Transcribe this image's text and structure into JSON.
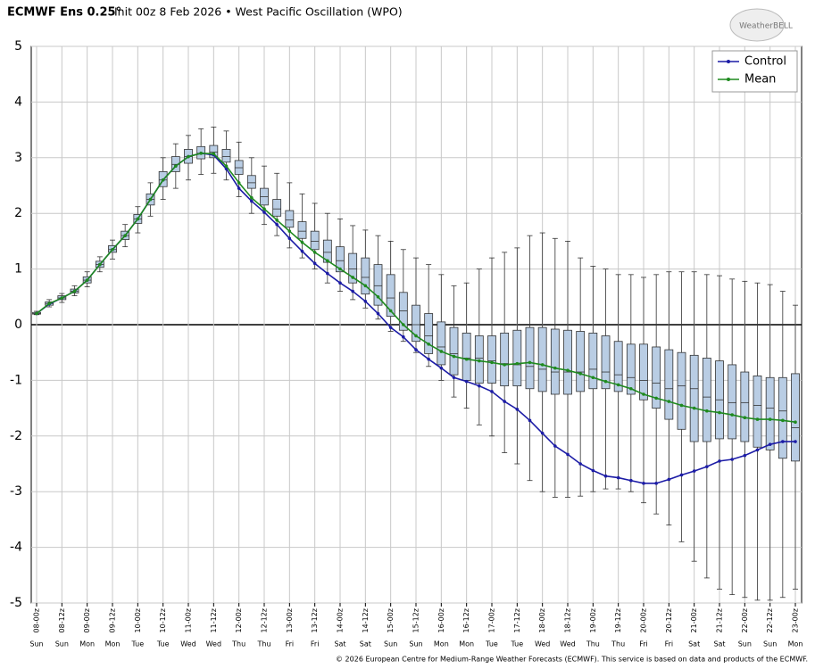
{
  "chart_data": {
    "type": "boxplot",
    "title_main": "ECMWF Ens 0.25°",
    "title_rest": "Init 00z 8 Feb 2026 • West Pacific Oscillation (WPO)",
    "logo": "WeatherBELL",
    "footer": "© 2026 European Centre for Medium-Range Weather Forecasts (ECMWF). This service is based on data and products of the ECMWF.",
    "categories": [
      "08-00z",
      null,
      "08-12z",
      null,
      "09-00z",
      null,
      "09-12z",
      null,
      "10-00z",
      null,
      "10-12z",
      null,
      "11-00z",
      null,
      "11-12z",
      null,
      "12-00z",
      null,
      "12-12z",
      null,
      "13-00z",
      null,
      "13-12z",
      null,
      "14-00z",
      null,
      "14-12z",
      null,
      "15-00z",
      null,
      "15-12z",
      null,
      "16-00z",
      null,
      "16-12z",
      null,
      "17-00z",
      null,
      "17-12z",
      null,
      "18-00z",
      null,
      "18-12z",
      null,
      "19-00z",
      null,
      "19-12z",
      null,
      "20-00z",
      null,
      "20-12z",
      null,
      "21-00z",
      null,
      "21-12z",
      null,
      "22-00z",
      null,
      "22-12z",
      null,
      "23-00z"
    ],
    "weekdays": [
      "Sun",
      null,
      "Sun",
      null,
      "Mon",
      null,
      "Mon",
      null,
      "Tue",
      null,
      "Tue",
      null,
      "Wed",
      null,
      "Wed",
      null,
      "Thu",
      null,
      "Thu",
      null,
      "Fri",
      null,
      "Fri",
      null,
      "Sat",
      null,
      "Sat",
      null,
      "Sun",
      null,
      "Sun",
      null,
      "Mon",
      null,
      "Mon",
      null,
      "Tue",
      null,
      "Tue",
      null,
      "Wed",
      null,
      "Wed",
      null,
      "Thu",
      null,
      "Thu",
      null,
      "Fri",
      null,
      "Fri",
      null,
      "Sat",
      null,
      "Sat",
      null,
      "Sun",
      null,
      "Sun",
      null,
      "Mon"
    ],
    "boxes": {
      "color": "#b9cde4",
      "min": [
        0.18,
        0.32,
        0.4,
        0.52,
        0.68,
        0.95,
        1.18,
        1.4,
        1.65,
        1.95,
        2.25,
        2.45,
        2.6,
        2.7,
        2.72,
        2.6,
        2.3,
        2.0,
        1.8,
        1.6,
        1.38,
        1.2,
        1.0,
        0.75,
        0.6,
        0.45,
        0.3,
        0.1,
        -0.12,
        -0.3,
        -0.5,
        -0.75,
        -1.0,
        -1.3,
        -1.5,
        -1.8,
        -2.0,
        -2.3,
        -2.5,
        -2.8,
        -3.0,
        -3.1,
        -3.1,
        -3.08,
        -3.0,
        -2.95,
        -2.95,
        -3.0,
        -3.2,
        -3.4,
        -3.6,
        -3.9,
        -4.25,
        -4.55,
        -4.75,
        -4.85,
        -4.9,
        -4.95,
        -4.95,
        -4.9,
        -4.75
      ],
      "q1": [
        0.19,
        0.35,
        0.45,
        0.57,
        0.75,
        1.03,
        1.3,
        1.53,
        1.82,
        2.15,
        2.48,
        2.75,
        2.9,
        2.98,
        3.0,
        2.92,
        2.7,
        2.45,
        2.15,
        1.95,
        1.75,
        1.55,
        1.35,
        1.12,
        0.95,
        0.75,
        0.55,
        0.35,
        0.15,
        -0.1,
        -0.3,
        -0.52,
        -0.72,
        -0.9,
        -1.0,
        -1.05,
        -1.05,
        -1.1,
        -1.1,
        -1.15,
        -1.2,
        -1.25,
        -1.25,
        -1.2,
        -1.15,
        -1.15,
        -1.2,
        -1.25,
        -1.35,
        -1.5,
        -1.7,
        -1.88,
        -2.1,
        -2.1,
        -2.05,
        -2.05,
        -2.1,
        -2.2,
        -2.25,
        -2.4,
        -2.45
      ],
      "median": [
        0.2,
        0.38,
        0.48,
        0.6,
        0.8,
        1.08,
        1.35,
        1.6,
        1.9,
        2.25,
        2.6,
        2.88,
        3.02,
        3.08,
        3.1,
        3.02,
        2.82,
        2.55,
        2.3,
        2.08,
        1.88,
        1.68,
        1.5,
        1.3,
        1.15,
        1.0,
        0.85,
        0.7,
        0.48,
        0.25,
        0.0,
        -0.2,
        -0.4,
        -0.52,
        -0.6,
        -0.6,
        -0.65,
        -0.7,
        -0.72,
        -0.75,
        -0.8,
        -0.85,
        -0.85,
        -0.85,
        -0.8,
        -0.85,
        -0.9,
        -0.95,
        -1.0,
        -1.05,
        -1.15,
        -1.1,
        -1.15,
        -1.3,
        -1.35,
        -1.4,
        -1.4,
        -1.45,
        -1.5,
        -1.55,
        -1.85
      ],
      "q3": [
        0.22,
        0.41,
        0.52,
        0.64,
        0.86,
        1.14,
        1.42,
        1.68,
        1.98,
        2.35,
        2.75,
        3.02,
        3.15,
        3.2,
        3.22,
        3.15,
        2.95,
        2.68,
        2.45,
        2.25,
        2.05,
        1.85,
        1.68,
        1.52,
        1.4,
        1.28,
        1.2,
        1.08,
        0.9,
        0.58,
        0.35,
        0.2,
        0.05,
        -0.05,
        -0.15,
        -0.2,
        -0.2,
        -0.15,
        -0.1,
        -0.05,
        -0.05,
        -0.08,
        -0.1,
        -0.12,
        -0.15,
        -0.2,
        -0.3,
        -0.35,
        -0.35,
        -0.4,
        -0.45,
        -0.5,
        -0.55,
        -0.6,
        -0.65,
        -0.72,
        -0.85,
        -0.92,
        -0.95,
        -0.95,
        -0.88
      ],
      "max": [
        0.24,
        0.45,
        0.56,
        0.7,
        0.95,
        1.22,
        1.52,
        1.8,
        2.12,
        2.55,
        3.0,
        3.25,
        3.4,
        3.52,
        3.55,
        3.48,
        3.28,
        3.0,
        2.85,
        2.72,
        2.55,
        2.35,
        2.18,
        2.0,
        1.9,
        1.78,
        1.7,
        1.6,
        1.5,
        1.35,
        1.2,
        1.08,
        0.9,
        0.7,
        0.75,
        1.0,
        1.2,
        1.3,
        1.38,
        1.6,
        1.65,
        1.55,
        1.5,
        1.2,
        1.05,
        1.0,
        0.9,
        0.9,
        0.85,
        0.9,
        0.95,
        0.95,
        0.95,
        0.9,
        0.88,
        0.82,
        0.78,
        0.75,
        0.72,
        0.6,
        0.35
      ]
    },
    "series": [
      {
        "name": "Control",
        "color": "#1c1ca6",
        "values": [
          0.2,
          0.37,
          0.48,
          0.6,
          0.8,
          1.08,
          1.35,
          1.6,
          1.9,
          2.25,
          2.6,
          2.85,
          3.02,
          3.08,
          3.05,
          2.8,
          2.45,
          2.22,
          2.02,
          1.8,
          1.55,
          1.32,
          1.1,
          0.92,
          0.75,
          0.6,
          0.42,
          0.2,
          -0.05,
          -0.22,
          -0.45,
          -0.62,
          -0.78,
          -0.95,
          -1.02,
          -1.1,
          -1.2,
          -1.38,
          -1.52,
          -1.72,
          -1.95,
          -2.18,
          -2.33,
          -2.5,
          -2.62,
          -2.72,
          -2.75,
          -2.8,
          -2.85,
          -2.85,
          -2.78,
          -2.7,
          -2.63,
          -2.55,
          -2.45,
          -2.42,
          -2.35,
          -2.25,
          -2.15,
          -2.1,
          -2.1
        ]
      },
      {
        "name": "Mean",
        "color": "#1f8a1f",
        "values": [
          0.2,
          0.38,
          0.48,
          0.6,
          0.8,
          1.08,
          1.35,
          1.6,
          1.9,
          2.25,
          2.6,
          2.85,
          3.02,
          3.08,
          3.07,
          2.85,
          2.55,
          2.28,
          2.08,
          1.88,
          1.68,
          1.48,
          1.3,
          1.15,
          1.0,
          0.85,
          0.7,
          0.5,
          0.25,
          0.0,
          -0.2,
          -0.35,
          -0.48,
          -0.57,
          -0.62,
          -0.65,
          -0.68,
          -0.72,
          -0.7,
          -0.68,
          -0.72,
          -0.78,
          -0.82,
          -0.88,
          -0.95,
          -1.02,
          -1.08,
          -1.15,
          -1.25,
          -1.32,
          -1.38,
          -1.45,
          -1.5,
          -1.55,
          -1.58,
          -1.62,
          -1.67,
          -1.7,
          -1.7,
          -1.72,
          -1.75
        ]
      }
    ],
    "ylim": [
      -5,
      5
    ],
    "yticks": [
      -5,
      -4,
      -3,
      -2,
      -1,
      0,
      1,
      2,
      3,
      4,
      5
    ],
    "grid": true,
    "legend": "top-right"
  }
}
